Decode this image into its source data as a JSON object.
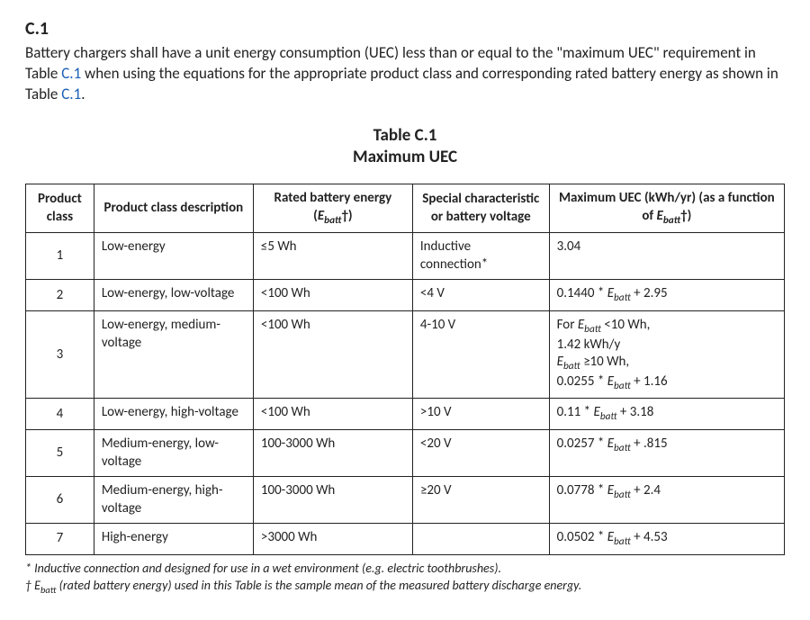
{
  "section": {
    "heading": "C.1",
    "intro_before_link1": "Battery chargers shall have a unit energy consumption (UEC) less than or equal to the \"maximum UEC\" requirement in Table ",
    "link1_text": "C.1",
    "intro_between_links": " when using the equations for the appropriate product class and corresponding rated battery energy as shown in Table ",
    "link2_text": "C.1",
    "intro_after_link2": "."
  },
  "table": {
    "title": "Table C.1",
    "subtitle": "Maximum UEC",
    "columns": {
      "product_class": "Product class",
      "description": "Product class description",
      "rated_energy_pre": "Rated battery energy (",
      "rated_energy_post": "†)",
      "special": "Special characteristic or battery voltage",
      "max_uec_pre": "Maximum UEC (kWh/yr) (as a function of ",
      "max_uec_post": "†)"
    },
    "ebatt_label": "E",
    "ebatt_sub": "batt",
    "rows": [
      {
        "class": "1",
        "desc": "Low-energy",
        "energy": "≤5 Wh",
        "special": "Inductive connection*",
        "uec_plain": "3.04"
      },
      {
        "class": "2",
        "desc": "Low-energy, low-voltage",
        "energy": "<100 Wh",
        "special": "<4 V",
        "uec_coef": "0.1440 * ",
        "uec_tail": " + 2.95"
      },
      {
        "class": "3",
        "desc": "Low-energy, medium-voltage",
        "energy": "<100 Wh",
        "special": "4-10 V",
        "uec_line1_pre": "For ",
        "uec_line1_post": " <10 Wh,",
        "uec_line2": "1.42 kWh/y",
        "uec_line3_post": " ≥10 Wh,",
        "uec_line4_coef": "0.0255 * ",
        "uec_line4_tail": " + 1.16"
      },
      {
        "class": "4",
        "desc": "Low-energy, high-voltage",
        "energy": "<100 Wh",
        "special": ">10 V",
        "uec_coef": "0.11 * ",
        "uec_tail": " + 3.18"
      },
      {
        "class": "5",
        "desc": "Medium-energy, low-voltage",
        "energy": "100-3000 Wh",
        "special": "<20 V",
        "uec_coef": "0.0257 * ",
        "uec_tail": " + .815"
      },
      {
        "class": "6",
        "desc": "Medium-energy, high-voltage",
        "energy": "100-3000 Wh",
        "special": "≥20 V",
        "uec_coef": "0.0778 * ",
        "uec_tail": " + 2.4"
      },
      {
        "class": "7",
        "desc": "High-energy",
        "energy": ">3000 Wh",
        "special": "",
        "uec_coef": "0.0502 * ",
        "uec_tail": " + 4.53"
      }
    ]
  },
  "footnotes": {
    "note1": "* Inductive connection and designed for use in a wet environment (e.g. electric toothbrushes).",
    "note2_pre": "† ",
    "note2_post": " (rated battery energy) used in this Table is the sample mean of the measured battery discharge energy."
  },
  "style": {
    "background_color": "#ffffff",
    "text_color": "#222222",
    "border_color": "#222222",
    "link_color": "#1a5fb4",
    "heading_fontsize": 20,
    "body_fontsize": 17,
    "table_title_fontsize": 19,
    "cell_fontsize": 15,
    "footnote_fontsize": 14
  }
}
